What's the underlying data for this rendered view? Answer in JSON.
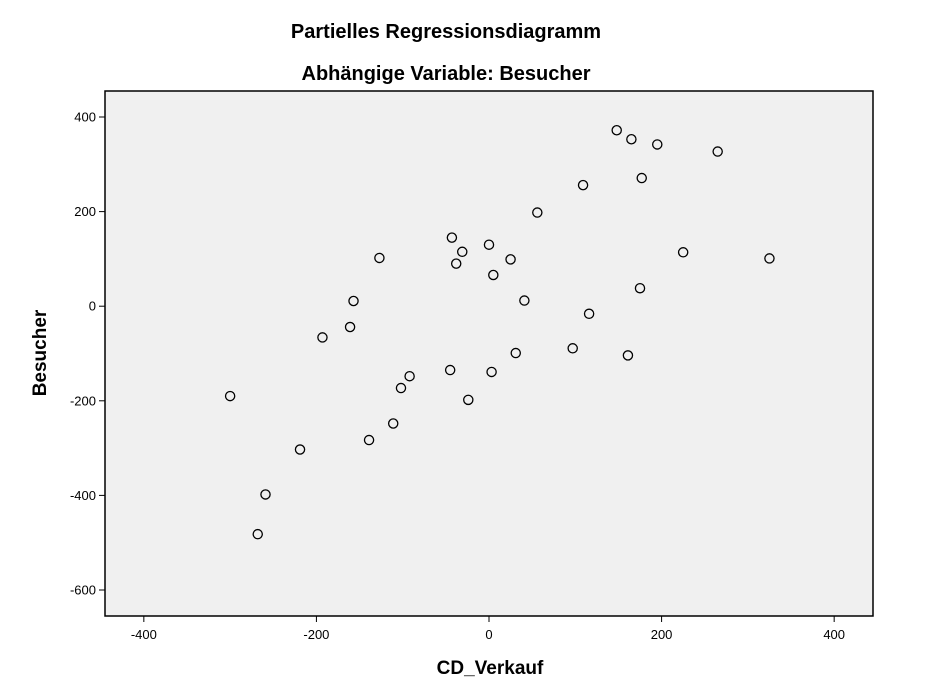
{
  "chart_data": {
    "type": "scatter",
    "title": "Partielles Regressionsdiagramm",
    "subtitle": "Abhängige Variable: Besucher",
    "xlabel": "CD_Verkauf",
    "ylabel": "Besucher",
    "xlim": [
      -445,
      445
    ],
    "ylim": [
      -655,
      455
    ],
    "xticks": [
      -400,
      -200,
      0,
      200,
      400
    ],
    "yticks": [
      400,
      200,
      0,
      -200,
      -400,
      -600
    ],
    "grid": false,
    "legend": "none",
    "plot_background": "#f0f0f0",
    "marker_color": "#000000",
    "points": [
      {
        "x": -300,
        "y": -190
      },
      {
        "x": -268,
        "y": -482
      },
      {
        "x": -259,
        "y": -398
      },
      {
        "x": -219,
        "y": -303
      },
      {
        "x": -193,
        "y": -66
      },
      {
        "x": -161,
        "y": -44
      },
      {
        "x": -157,
        "y": 11
      },
      {
        "x": -139,
        "y": -283
      },
      {
        "x": -127,
        "y": 102
      },
      {
        "x": -111,
        "y": -248
      },
      {
        "x": -102,
        "y": -173
      },
      {
        "x": -92,
        "y": -148
      },
      {
        "x": -45,
        "y": -135
      },
      {
        "x": -43,
        "y": 145
      },
      {
        "x": -38,
        "y": 90
      },
      {
        "x": -31,
        "y": 115
      },
      {
        "x": -24,
        "y": -198
      },
      {
        "x": 0,
        "y": 130
      },
      {
        "x": 3,
        "y": -139
      },
      {
        "x": 5,
        "y": 66
      },
      {
        "x": 25,
        "y": 99
      },
      {
        "x": 31,
        "y": -99
      },
      {
        "x": 41,
        "y": 12
      },
      {
        "x": 56,
        "y": 198
      },
      {
        "x": 97,
        "y": -89
      },
      {
        "x": 109,
        "y": 256
      },
      {
        "x": 116,
        "y": -16
      },
      {
        "x": 148,
        "y": 372
      },
      {
        "x": 161,
        "y": -104
      },
      {
        "x": 165,
        "y": 353
      },
      {
        "x": 175,
        "y": 38
      },
      {
        "x": 177,
        "y": 271
      },
      {
        "x": 195,
        "y": 342
      },
      {
        "x": 225,
        "y": 114
      },
      {
        "x": 265,
        "y": 327
      },
      {
        "x": 325,
        "y": 101
      }
    ]
  }
}
